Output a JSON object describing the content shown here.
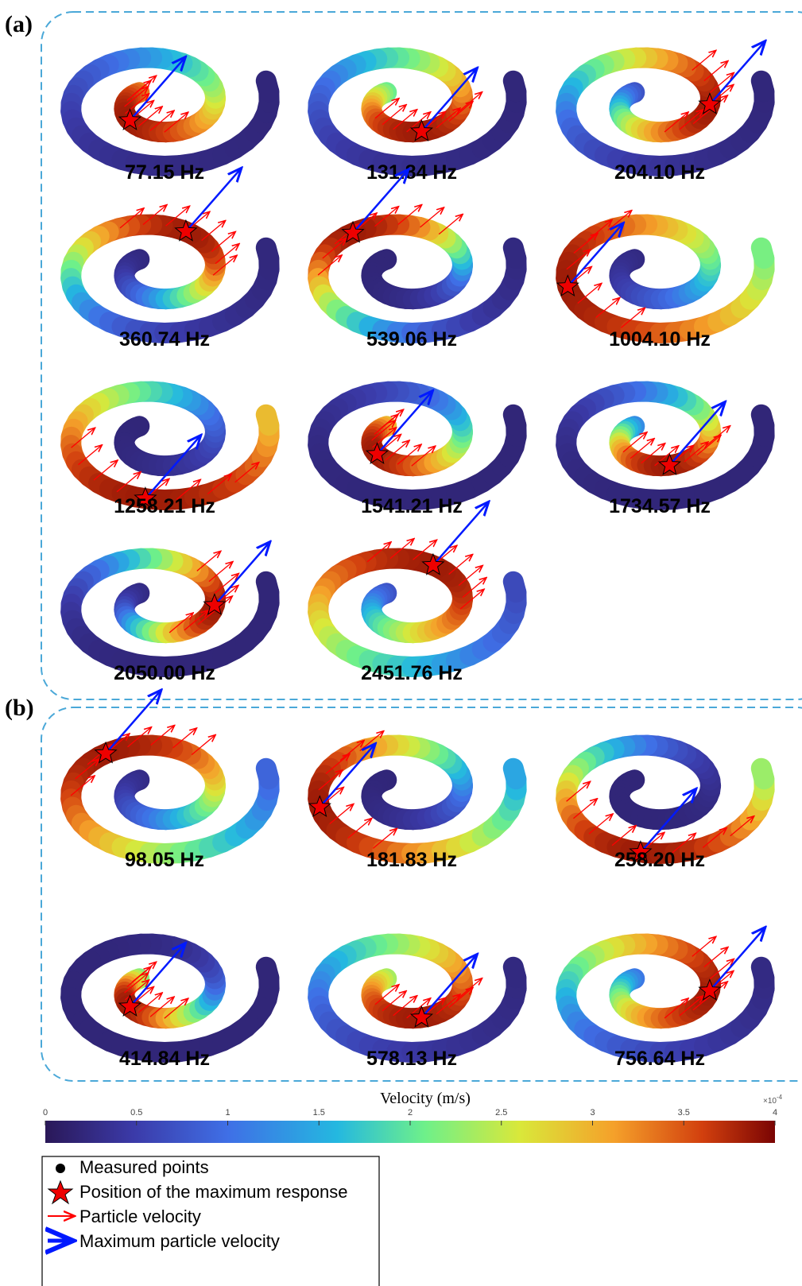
{
  "panels": [
    {
      "label": "(a)",
      "modes": [
        "77.15 Hz",
        "131.84 Hz",
        "204.10 Hz",
        "360.74 Hz",
        "539.06 Hz",
        "1004.10 Hz",
        "1258.21 Hz",
        "1541.21 Hz",
        "1734.57 Hz",
        "2050.00 Hz",
        "2451.76 Hz"
      ]
    },
    {
      "label": "(b)",
      "modes": [
        "98.05 Hz",
        "181.83 Hz",
        "258.20 Hz",
        "414.84 Hz",
        "578.13 Hz",
        "756.64 Hz"
      ]
    }
  ],
  "colorbar": {
    "title": "Velocity (m/s)",
    "lim": [
      0,
      4
    ],
    "ticks": [
      0,
      0.5,
      1,
      1.5,
      2,
      2.5,
      3,
      3.5,
      4
    ],
    "multiplier": "×10",
    "exponent": "-4"
  },
  "legend": [
    "Measured points",
    "Position of the maximum response",
    "Particle velocity",
    "Maximum particle velocity"
  ]
}
